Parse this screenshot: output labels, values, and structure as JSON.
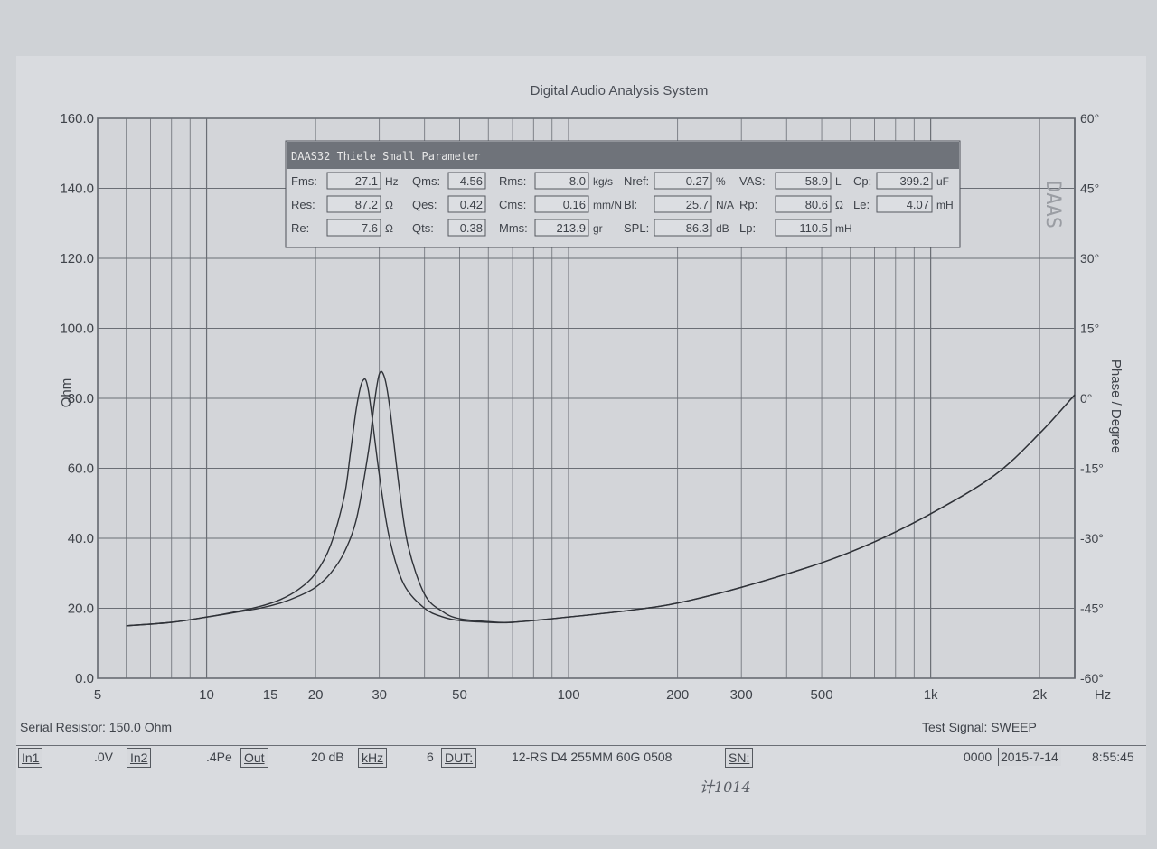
{
  "window": {
    "title": "Digital Audio Analysis System"
  },
  "ts_panel": {
    "title": "DAAS32 Thiele Small Parameter",
    "params": [
      {
        "label": "Fms:",
        "value": "27.1",
        "unit": "Hz"
      },
      {
        "label": "Qms:",
        "value": "4.56",
        "unit": ""
      },
      {
        "label": "Rms:",
        "value": "8.0",
        "unit": "kg/s"
      },
      {
        "label": "Nref:",
        "value": "0.27",
        "unit": "%"
      },
      {
        "label": "VAS:",
        "value": "58.9",
        "unit": "L"
      },
      {
        "label": "Cp:",
        "value": "399.2",
        "unit": "uF"
      },
      {
        "label": "Res:",
        "value": "87.2",
        "unit": "Ω"
      },
      {
        "label": "Qes:",
        "value": "0.42",
        "unit": ""
      },
      {
        "label": "Cms:",
        "value": "0.16",
        "unit": "mm/N"
      },
      {
        "label": "Bl:",
        "value": "25.7",
        "unit": "N/A"
      },
      {
        "label": "Rp:",
        "value": "80.6",
        "unit": "Ω"
      },
      {
        "label": "Le:",
        "value": "4.07",
        "unit": "mH"
      },
      {
        "label": "Re:",
        "value": "7.6",
        "unit": "Ω"
      },
      {
        "label": "Qts:",
        "value": "0.38",
        "unit": ""
      },
      {
        "label": "Mms:",
        "value": "213.9",
        "unit": "gr"
      },
      {
        "label": "SPL:",
        "value": "86.3",
        "unit": "dB"
      },
      {
        "label": "Lp:",
        "value": "110.5",
        "unit": "mH"
      }
    ]
  },
  "status_bar": {
    "serial_resistor": "Serial Resistor: 150.0 Ohm",
    "test_signal": "Test Signal: SWEEP"
  },
  "toolbar": {
    "in1": "In1",
    "in1_value": ".0V",
    "in2": "In2",
    "in2_value": ".4Pe",
    "out": "Out",
    "out_value": "20 dB",
    "khz": "kHz",
    "khz_value": "6",
    "dut": "DUT:",
    "dut_value": "12-RS D4 255MM 60G 0508",
    "sn": "SN:",
    "serial_no": "0000",
    "date": "2015-7-14",
    "time": "8:55:45"
  },
  "handwriting": "计1014",
  "chart_data": {
    "type": "line",
    "xlabel": "Hz",
    "ylabel": "Ohm",
    "ylabel_right": "Phase / Degree",
    "x_scale": "log",
    "xlim": [
      5,
      2500
    ],
    "ylim": [
      0,
      160
    ],
    "y2lim": [
      -60,
      60
    ],
    "x_ticks": [
      5,
      10,
      15,
      20,
      30,
      50,
      100,
      200,
      300,
      500,
      1000,
      2000
    ],
    "x_tick_labels": [
      "5",
      "10",
      "15",
      "20",
      "30",
      "50",
      "100",
      "200",
      "300",
      "500",
      "1k",
      "2k"
    ],
    "y_ticks": [
      0,
      20,
      40,
      60,
      80,
      100,
      120,
      140,
      160
    ],
    "y_tick_labels": [
      "0.0",
      "20.0",
      "40.0",
      "60.0",
      "80.0",
      "100.0",
      "120.0",
      "140.0",
      "160.0"
    ],
    "y2_ticks": [
      -60,
      -45,
      -30,
      -15,
      0,
      15,
      30,
      45,
      60
    ],
    "y2_tick_labels": [
      "-60°",
      "-45°",
      "-30°",
      "-15°",
      "0°",
      "15°",
      "30°",
      "45°",
      "60°"
    ],
    "grid": true,
    "series": [
      {
        "x": [
          6,
          8,
          10,
          12,
          14,
          16,
          18,
          20,
          22,
          24,
          25,
          26,
          27,
          28,
          30,
          32,
          35,
          40,
          45,
          50,
          60,
          70,
          100,
          150,
          200,
          300,
          500,
          700,
          1000,
          1500,
          2000,
          2500
        ],
        "y": [
          15,
          16,
          17.5,
          19,
          20.5,
          22.5,
          25.5,
          30,
          38,
          52,
          65,
          78,
          85,
          82,
          58,
          40,
          27,
          20,
          17.5,
          16.5,
          16,
          16,
          17.5,
          19.5,
          21.5,
          26,
          33,
          39,
          47,
          58,
          70,
          81
        ]
      },
      {
        "x": [
          6,
          8,
          10,
          12,
          14,
          16,
          18,
          20,
          22,
          24,
          26,
          28,
          29,
          30,
          31,
          32,
          34,
          36,
          40,
          45,
          50,
          60,
          70,
          100,
          150,
          200,
          300,
          500,
          700,
          1000,
          1500,
          2000,
          2500
        ],
        "y": [
          15,
          16,
          17.5,
          18.8,
          20,
          21.5,
          23.5,
          26,
          30,
          36,
          46,
          65,
          78,
          87,
          86,
          78,
          55,
          38,
          24,
          19,
          17,
          16.2,
          16,
          17.5,
          19.5,
          21.5,
          26,
          33,
          39,
          47,
          58,
          70,
          81
        ]
      }
    ]
  }
}
